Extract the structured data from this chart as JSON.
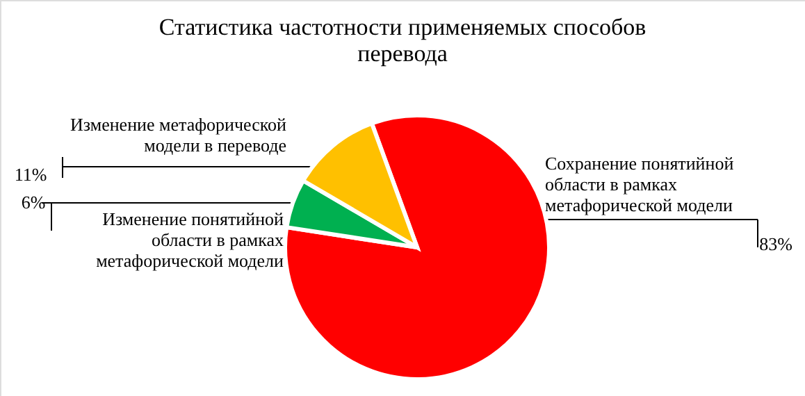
{
  "chart_data": {
    "type": "pie",
    "title": "Статистика частотности применяемых способов перевода",
    "categories": [
      "Сохранение понятийной области в рамках метафорической модели",
      "Изменение понятийной области в рамках метафорической модели",
      "Изменение метафорической модели в переводе"
    ],
    "values": [
      83,
      6,
      11
    ],
    "colors": [
      "#ff0000",
      "#00b050",
      "#ffc000"
    ],
    "value_labels": [
      "83%",
      "6%",
      "11%"
    ],
    "legend": false
  }
}
